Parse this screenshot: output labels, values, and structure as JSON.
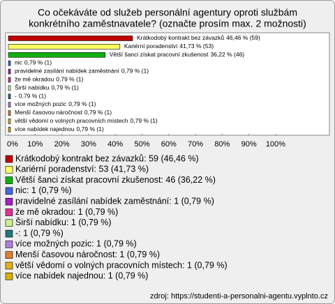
{
  "chart_data": {
    "type": "bar",
    "orientation": "horizontal",
    "title": [
      "Co očekáváte od služeb personální agentury oproti službám",
      "konkrétního zaměstnavatele? (označte prosím max. 2 možnosti)"
    ],
    "categories": [
      "Krátkodobý kontrakt bez závazků",
      "Kariérní poradenství",
      "Větší šanci získat pracovní zkušenost",
      "nic",
      "pravidelné zasílání nabídek zaměstnání",
      "že mě okradou",
      "Širší nabídku",
      "-",
      "více možných pozic",
      "Menší časovou náročnost",
      "větší vědomí o volných pracovních místech",
      "více nabídek najednou"
    ],
    "values": [
      46.46,
      41.73,
      36.22,
      0.79,
      0.79,
      0.79,
      0.79,
      0.79,
      0.79,
      0.79,
      0.79,
      0.79
    ],
    "value_labels": [
      "46,46 % (59)",
      "41,73 % (53)",
      "36,22 % (46)",
      "0,79 % (1)",
      "0,79 % (1)",
      "0,79 % (1)",
      "0,79 % (1)",
      "0,79 % (1)",
      "0,79 % (1)",
      "0,79 % (1)",
      "0,79 % (1)",
      "0,79 % (1)"
    ],
    "colors": [
      "#c00000",
      "#ffff60",
      "#10b010",
      "#4466dd",
      "#a020c0",
      "#e03090",
      "#c8f090",
      "#207878",
      "#b080d8",
      "#e08030",
      "#e0b020",
      "#d8b000"
    ],
    "legend": [
      "Krátkodobý kontrakt bez závazků: 59 (46,46 %)",
      "Kariérní poradenství: 53 (41,73 %)",
      "Větší šanci získat pracovní zkušenost: 46 (36,22 %)",
      "nic: 1 (0,79 %)",
      "pravidelné zasílání nabídek zaměstnání: 1 (0,79 %)",
      "že mě okradou: 1 (0,79 %)",
      "Širší nabídku: 1 (0,79 %)",
      "-: 1 (0,79 %)",
      "více možných pozic: 1 (0,79 %)",
      "Menší časovou náročnost: 1 (0,79 %)",
      "větší vědomí o volných pracovních místech: 1 (0,79 %)",
      "více nabídek najednou: 1 (0,79 %)"
    ],
    "xlim": [
      0,
      100
    ],
    "xticks": [
      {
        "value": 0,
        "label": "0%"
      },
      {
        "value": 10,
        "label": "10%"
      },
      {
        "value": 20,
        "label": "20%"
      },
      {
        "value": 30,
        "label": "30%"
      },
      {
        "value": 40,
        "label": "40%"
      },
      {
        "value": 50,
        "label": "50%"
      },
      {
        "value": 60,
        "label": "60%"
      },
      {
        "value": 70,
        "label": "70%"
      },
      {
        "value": 80,
        "label": "80%"
      },
      {
        "value": 90,
        "label": "90%"
      },
      {
        "value": 100,
        "label": "100%"
      }
    ],
    "source": "zdroj: https://studenti-a-personalni-agentu.vyplnto.cz"
  }
}
